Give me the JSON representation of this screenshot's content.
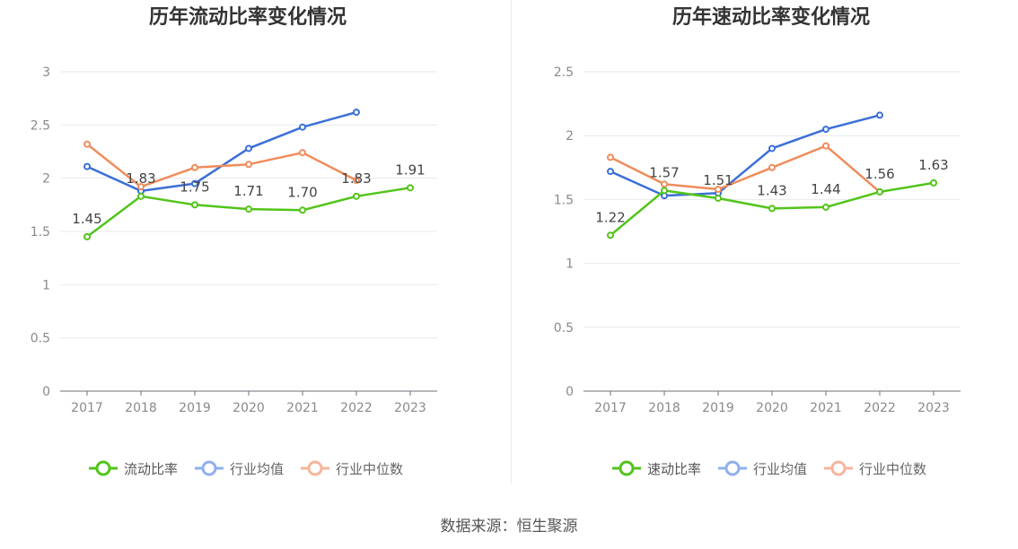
{
  "source": "数据来源：恒生聚源",
  "colors": {
    "primary": "#52c41a",
    "avg": "#3a6fd8",
    "median": "#f08c5c",
    "avg_legend": "#8fb0ef",
    "median_legend": "#f7b59a",
    "grid": "#e6e9f0",
    "axis": "#6e7079",
    "tick_text": "#8a8a8a"
  },
  "chart_data": [
    {
      "type": "line",
      "title": "历年流动比率变化情况",
      "categories": [
        "2017",
        "2018",
        "2019",
        "2020",
        "2021",
        "2022",
        "2023"
      ],
      "y_ticks": [
        "0",
        "0.5",
        "1",
        "1.5",
        "2",
        "2.5",
        "3"
      ],
      "ylim": [
        0,
        3
      ],
      "series": [
        {
          "name": "流动比率",
          "values": [
            1.45,
            1.83,
            1.75,
            1.71,
            1.7,
            1.83,
            1.91
          ],
          "labels": [
            "1.45",
            "1.83",
            "1.75",
            "1.71",
            "1.70",
            "1.83",
            "1.91"
          ]
        },
        {
          "name": "行业均值",
          "values": [
            2.11,
            1.88,
            1.95,
            2.28,
            2.48,
            2.62,
            null
          ]
        },
        {
          "name": "行业中位数",
          "values": [
            2.32,
            1.92,
            2.1,
            2.13,
            2.24,
            1.98,
            null
          ]
        }
      ],
      "legend": "bottom-center",
      "grid": true
    },
    {
      "type": "line",
      "title": "历年速动比率变化情况",
      "categories": [
        "2017",
        "2018",
        "2019",
        "2020",
        "2021",
        "2022",
        "2023"
      ],
      "y_ticks": [
        "0",
        "0.5",
        "1",
        "1.5",
        "2",
        "2.5"
      ],
      "ylim": [
        0,
        2.5
      ],
      "series": [
        {
          "name": "速动比率",
          "values": [
            1.22,
            1.57,
            1.51,
            1.43,
            1.44,
            1.56,
            1.63
          ],
          "labels": [
            "1.22",
            "1.57",
            "1.51",
            "1.43",
            "1.44",
            "1.56",
            "1.63"
          ]
        },
        {
          "name": "行业均值",
          "values": [
            1.72,
            1.53,
            1.55,
            1.9,
            2.05,
            2.16,
            null
          ]
        },
        {
          "name": "行业中位数",
          "values": [
            1.83,
            1.62,
            1.58,
            1.75,
            1.92,
            1.56,
            null
          ]
        }
      ],
      "legend": "bottom-center",
      "grid": true
    }
  ]
}
